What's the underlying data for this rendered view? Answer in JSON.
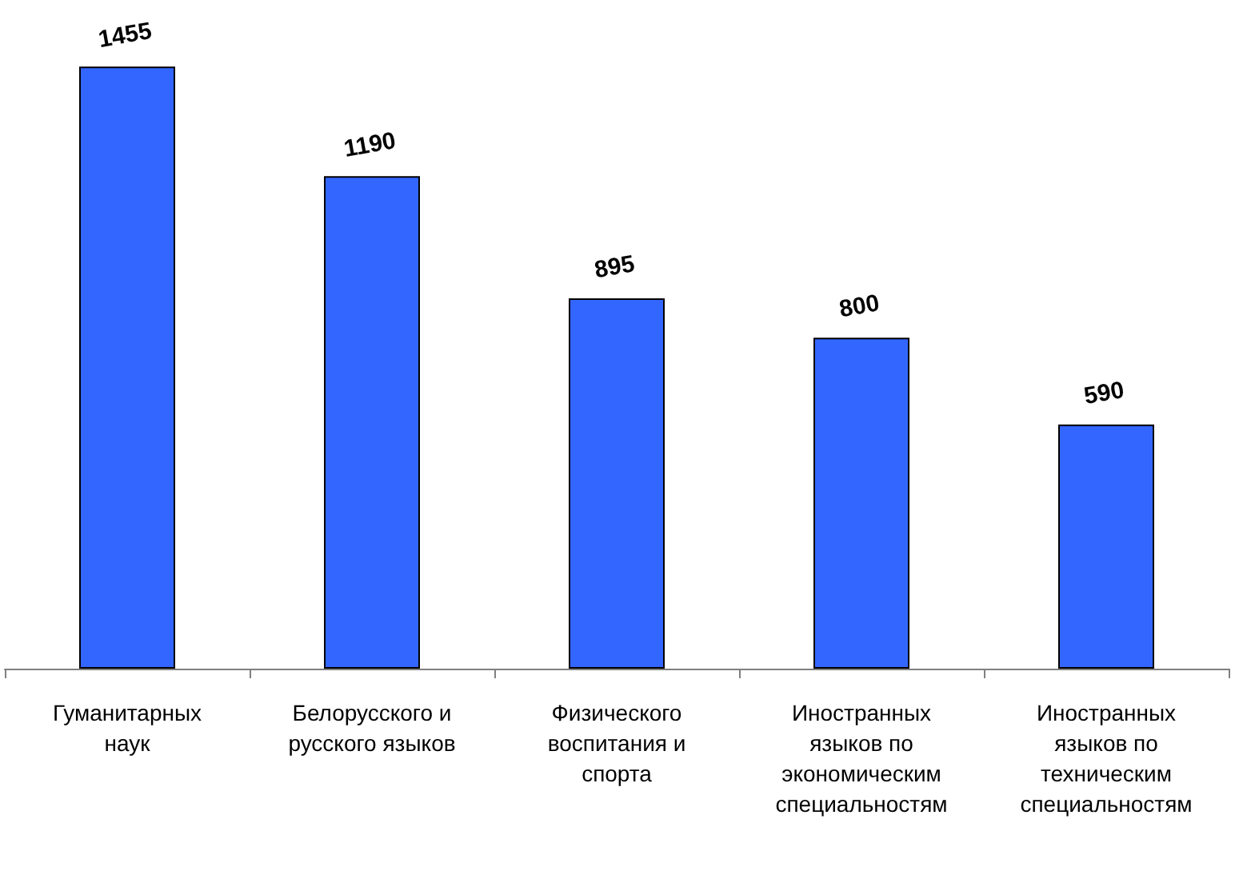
{
  "chart_data": {
    "type": "bar",
    "categories": [
      "Гуманитарных наук",
      "Белорусского и русского языков",
      "Физического воспитания и спорта",
      "Иностранных языков по экономическим специальностям",
      "Иностранных языков по техническим специальностям"
    ],
    "values": [
      1455,
      1190,
      895,
      800,
      590
    ],
    "color": "#3366ff",
    "data_labels": true,
    "grid": false
  }
}
